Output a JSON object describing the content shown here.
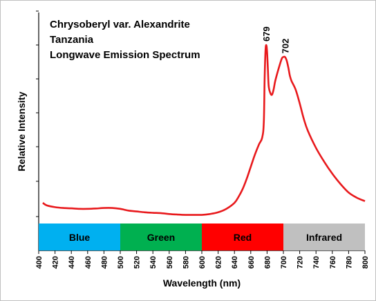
{
  "chart_data": {
    "type": "line",
    "title_lines": [
      "Chrysoberyl var. Alexandrite",
      "Tanzania",
      "Longwave Emission Spectrum"
    ],
    "xlabel": "Wavelength (nm)",
    "ylabel": "Relative Intensity",
    "xlim": [
      400,
      800
    ],
    "ylim": [
      0,
      1.0
    ],
    "x_ticks": [
      400,
      420,
      440,
      460,
      480,
      500,
      520,
      540,
      560,
      580,
      600,
      620,
      640,
      660,
      680,
      700,
      720,
      740,
      760,
      780,
      800
    ],
    "y_tick_labels_shown": false,
    "grid": false,
    "series_color": "#e8191c",
    "series": [
      {
        "x": [
          405,
          410,
          420,
          430,
          440,
          450,
          460,
          470,
          480,
          490,
          500,
          510,
          520,
          530,
          540,
          550,
          560,
          570,
          580,
          590,
          600,
          610,
          620,
          630,
          640,
          645,
          650,
          655,
          660,
          665,
          670,
          674,
          676,
          677,
          678,
          679,
          680,
          681,
          682,
          684,
          686,
          688,
          690,
          694,
          698,
          700,
          702,
          704,
          706,
          708,
          710,
          715,
          720,
          725,
          730,
          740,
          750,
          760,
          770,
          780,
          790,
          800
        ],
        "y": [
          0.08,
          0.065,
          0.055,
          0.05,
          0.048,
          0.045,
          0.045,
          0.047,
          0.05,
          0.05,
          0.045,
          0.035,
          0.03,
          0.025,
          0.022,
          0.02,
          0.015,
          0.012,
          0.01,
          0.01,
          0.01,
          0.015,
          0.025,
          0.045,
          0.08,
          0.115,
          0.16,
          0.22,
          0.29,
          0.36,
          0.42,
          0.46,
          0.55,
          0.8,
          0.96,
          1.0,
          0.96,
          0.86,
          0.76,
          0.72,
          0.71,
          0.74,
          0.79,
          0.86,
          0.92,
          0.93,
          0.93,
          0.91,
          0.87,
          0.82,
          0.79,
          0.74,
          0.66,
          0.57,
          0.5,
          0.4,
          0.32,
          0.25,
          0.19,
          0.14,
          0.11,
          0.09
        ]
      }
    ],
    "annotations": [
      {
        "x": 679,
        "text": "679"
      },
      {
        "x": 702,
        "text": "702"
      }
    ],
    "color_bands": [
      {
        "label": "Blue",
        "from": 400,
        "to": 500,
        "color": "#00b0f0"
      },
      {
        "label": "Green",
        "from": 500,
        "to": 600,
        "color": "#00b050"
      },
      {
        "label": "Red",
        "from": 600,
        "to": 700,
        "color": "#ff0000"
      },
      {
        "label": "Infrared",
        "from": 700,
        "to": 800,
        "color": "#c0c0c0"
      }
    ]
  }
}
